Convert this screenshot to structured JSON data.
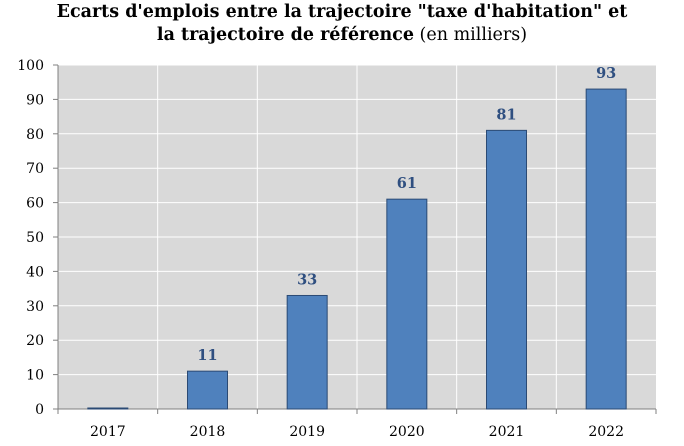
{
  "title_line1": "Ecarts d'emplois entre la trajectoire \"taxe d'habitation\" et",
  "title_line2_bold": "la trajectoire de référence",
  "title_line2_unit": "(en milliers)",
  "colors": {
    "plot_background": "#d9d9d9",
    "bar_fill": "#4f81bd",
    "bar_stroke": "#2b4a74",
    "grid": "#ffffff",
    "data_label": "#2f4f80"
  },
  "chart_data": {
    "type": "bar",
    "title": "Ecarts d'emplois entre la trajectoire \"taxe d'habitation\" et la trajectoire de référence (en milliers)",
    "categories": [
      "2017",
      "2018",
      "2019",
      "2020",
      "2021",
      "2022"
    ],
    "values": [
      0,
      11,
      33,
      61,
      81,
      93
    ],
    "data_labels": [
      "",
      "11",
      "33",
      "61",
      "81",
      "93"
    ],
    "ylim": [
      0,
      100
    ],
    "yticks": [
      0,
      10,
      20,
      30,
      40,
      50,
      60,
      70,
      80,
      90,
      100
    ],
    "grid": true,
    "legend": "none"
  }
}
